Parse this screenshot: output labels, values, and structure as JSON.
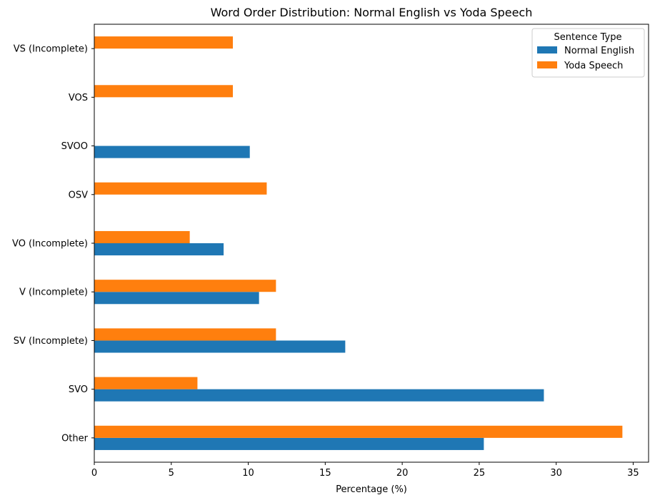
{
  "chart_data": {
    "type": "bar",
    "orientation": "horizontal",
    "title": "Word Order Distribution: Normal English vs Yoda Speech",
    "xlabel": "Percentage (%)",
    "ylabel": "",
    "xlim": [
      0,
      36
    ],
    "xticks": [
      0,
      5,
      10,
      15,
      20,
      25,
      30,
      35
    ],
    "grid": false,
    "legend_title": "Sentence Type",
    "legend_position": "top-right",
    "categories": [
      "Other",
      "SVO",
      "SV (Incomplete)",
      "V (Incomplete)",
      "VO (Incomplete)",
      "OSV",
      "SVOO",
      "VOS",
      "VS (Incomplete)"
    ],
    "series": [
      {
        "name": "Normal English",
        "color": "#1f77b4",
        "values": [
          25.3,
          29.2,
          16.3,
          10.7,
          8.4,
          0,
          10.1,
          0,
          0
        ]
      },
      {
        "name": "Yoda Speech",
        "color": "#ff7f0e",
        "values": [
          34.3,
          6.7,
          11.8,
          11.8,
          6.2,
          11.2,
          0,
          9.0,
          9.0
        ]
      }
    ]
  }
}
